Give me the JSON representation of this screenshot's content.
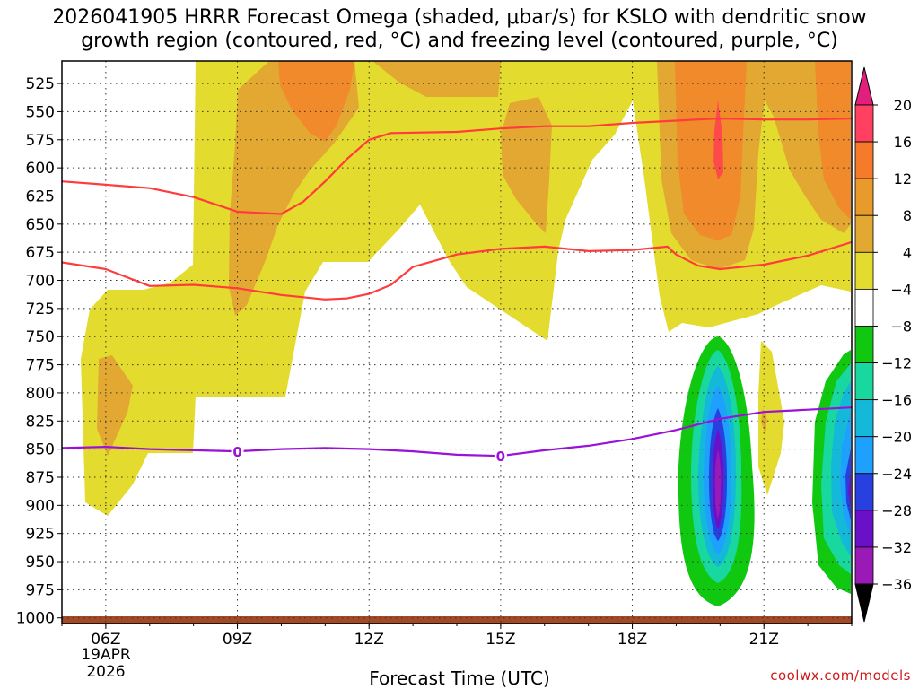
{
  "title_line1": "2026041905 HRRR Forecast Omega (shaded, μbar/s) for KSLO with dendritic snow",
  "title_line2": "growth region (contoured, red, °C) and freezing level (contoured, purple, °C)",
  "xlabel": "Forecast Time (UTC)",
  "credit": "coolwx.com/models",
  "chart_data": {
    "type": "heatmap",
    "x_ticks": [
      {
        "hour": 6,
        "label": "06Z"
      },
      {
        "hour": 9,
        "label": "09Z"
      },
      {
        "hour": 12,
        "label": "12Z"
      },
      {
        "hour": 15,
        "label": "15Z"
      },
      {
        "hour": 18,
        "label": "18Z"
      },
      {
        "hour": 21,
        "label": "21Z"
      }
    ],
    "x_date_lines": [
      "19APR",
      "2026"
    ],
    "xlim": [
      5,
      23
    ],
    "ylim": [
      505,
      1005
    ],
    "y_ticks": [
      525,
      550,
      575,
      600,
      625,
      650,
      675,
      700,
      725,
      750,
      775,
      800,
      825,
      850,
      875,
      900,
      925,
      950,
      975,
      1000
    ],
    "colorbar": {
      "levels": [
        {
          "label": "20",
          "color": "#ff4060"
        },
        {
          "label": "16",
          "color": "#f57a2a"
        },
        {
          "label": "12",
          "color": "#e89a2a"
        },
        {
          "label": "8",
          "color": "#e2a832"
        },
        {
          "label": "4",
          "color": "#e4db2f"
        },
        {
          "label": "−4",
          "color": "#ffffff"
        },
        {
          "label": "−8",
          "color": "#10c810"
        },
        {
          "label": "−12",
          "color": "#18d8a0"
        },
        {
          "label": "−16",
          "color": "#14b8d8"
        },
        {
          "label": "−20",
          "color": "#1ea0ff"
        },
        {
          "label": "−24",
          "color": "#2840e0"
        },
        {
          "label": "−28",
          "color": "#6a10c8"
        },
        {
          "label": "−32",
          "color": "#9a1ab8"
        },
        {
          "label": "−36",
          "color": "#a8a8a8"
        }
      ],
      "top_arrow_color": "#e0207a",
      "bottom_arrow_color": "#000000"
    },
    "series": [
      {
        "name": "dgz_top_-18C",
        "color": "#ff3b3b",
        "points": [
          [
            5,
            612
          ],
          [
            6,
            615
          ],
          [
            7,
            618
          ],
          [
            8,
            626
          ],
          [
            9,
            639
          ],
          [
            9.5,
            640
          ],
          [
            10,
            641
          ],
          [
            10.5,
            630
          ],
          [
            11,
            612
          ],
          [
            11.5,
            592
          ],
          [
            12,
            575
          ],
          [
            12.5,
            569
          ],
          [
            14,
            568
          ],
          [
            15,
            565
          ],
          [
            16,
            563
          ],
          [
            17,
            563
          ],
          [
            18,
            560
          ],
          [
            19,
            558
          ],
          [
            19.5,
            557
          ],
          [
            20,
            556
          ],
          [
            21,
            557
          ],
          [
            22,
            557
          ],
          [
            23,
            556
          ]
        ]
      },
      {
        "name": "dgz_bottom_-12C",
        "color": "#ff3b3b",
        "points": [
          [
            5,
            684
          ],
          [
            6,
            690
          ],
          [
            7,
            705
          ],
          [
            8,
            704
          ],
          [
            9,
            707
          ],
          [
            10,
            713
          ],
          [
            11,
            717
          ],
          [
            11.5,
            716
          ],
          [
            12,
            712
          ],
          [
            12.5,
            704
          ],
          [
            13,
            688
          ],
          [
            14,
            677
          ],
          [
            15,
            672
          ],
          [
            16,
            670
          ],
          [
            17,
            674
          ],
          [
            18,
            673
          ],
          [
            18.8,
            670
          ],
          [
            19,
            677
          ],
          [
            19.5,
            687
          ],
          [
            20,
            690
          ],
          [
            21,
            686
          ],
          [
            22,
            678
          ],
          [
            23,
            666
          ]
        ]
      },
      {
        "name": "freezing_level_0C",
        "color": "#9a12d8",
        "label": "0",
        "label_hours": [
          9,
          15
        ],
        "points": [
          [
            5,
            849
          ],
          [
            6,
            848
          ],
          [
            7,
            850
          ],
          [
            8,
            851
          ],
          [
            9,
            852
          ],
          [
            10,
            850
          ],
          [
            11,
            849
          ],
          [
            12,
            850
          ],
          [
            13,
            852
          ],
          [
            14,
            855
          ],
          [
            15,
            856
          ],
          [
            16,
            851
          ],
          [
            17,
            847
          ],
          [
            18,
            841
          ],
          [
            19,
            833
          ],
          [
            20,
            823
          ],
          [
            21,
            817
          ],
          [
            22,
            815
          ],
          [
            23,
            813
          ]
        ]
      }
    ],
    "terrain_color": "#a04a28"
  }
}
